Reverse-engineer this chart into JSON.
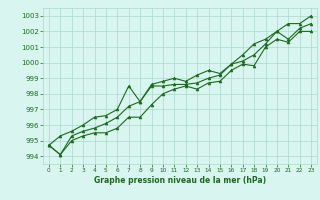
{
  "xlabel": "Graphe pression niveau de la mer (hPa)",
  "x": [
    0,
    1,
    2,
    3,
    4,
    5,
    6,
    7,
    8,
    9,
    10,
    11,
    12,
    13,
    14,
    15,
    16,
    17,
    18,
    19,
    20,
    21,
    22,
    23
  ],
  "y_mean": [
    994.7,
    994.1,
    995.3,
    995.6,
    995.8,
    996.1,
    996.5,
    997.2,
    997.5,
    998.5,
    998.5,
    998.6,
    998.6,
    998.7,
    999.0,
    999.2,
    999.9,
    1000.1,
    1000.5,
    1001.2,
    1002.0,
    1001.5,
    1002.2,
    1002.5
  ],
  "y_max": [
    994.7,
    995.3,
    995.6,
    996.0,
    996.5,
    996.6,
    997.0,
    998.5,
    997.5,
    998.6,
    998.8,
    999.0,
    998.8,
    999.2,
    999.5,
    999.3,
    999.9,
    1000.5,
    1001.2,
    1001.5,
    1002.0,
    1002.5,
    1002.5,
    1003.0
  ],
  "y_min": [
    994.7,
    994.1,
    995.0,
    995.3,
    995.5,
    995.5,
    995.8,
    996.5,
    996.5,
    997.3,
    998.0,
    998.3,
    998.5,
    998.3,
    998.7,
    998.8,
    999.5,
    999.9,
    999.8,
    1001.0,
    1001.5,
    1001.3,
    1002.0,
    1002.0
  ],
  "line_color": "#1a6b1a",
  "bg_color": "#d8f5f0",
  "grid_color": "#aad8cc",
  "ylim": [
    993.5,
    1003.5
  ],
  "xlim": [
    -0.5,
    23.5
  ],
  "yticks": [
    994,
    995,
    996,
    997,
    998,
    999,
    1000,
    1001,
    1002,
    1003
  ],
  "xticks": [
    0,
    1,
    2,
    3,
    4,
    5,
    6,
    7,
    8,
    9,
    10,
    11,
    12,
    13,
    14,
    15,
    16,
    17,
    18,
    19,
    20,
    21,
    22,
    23
  ],
  "marker": "^",
  "marker_size": 2.0,
  "linewidth": 0.8
}
